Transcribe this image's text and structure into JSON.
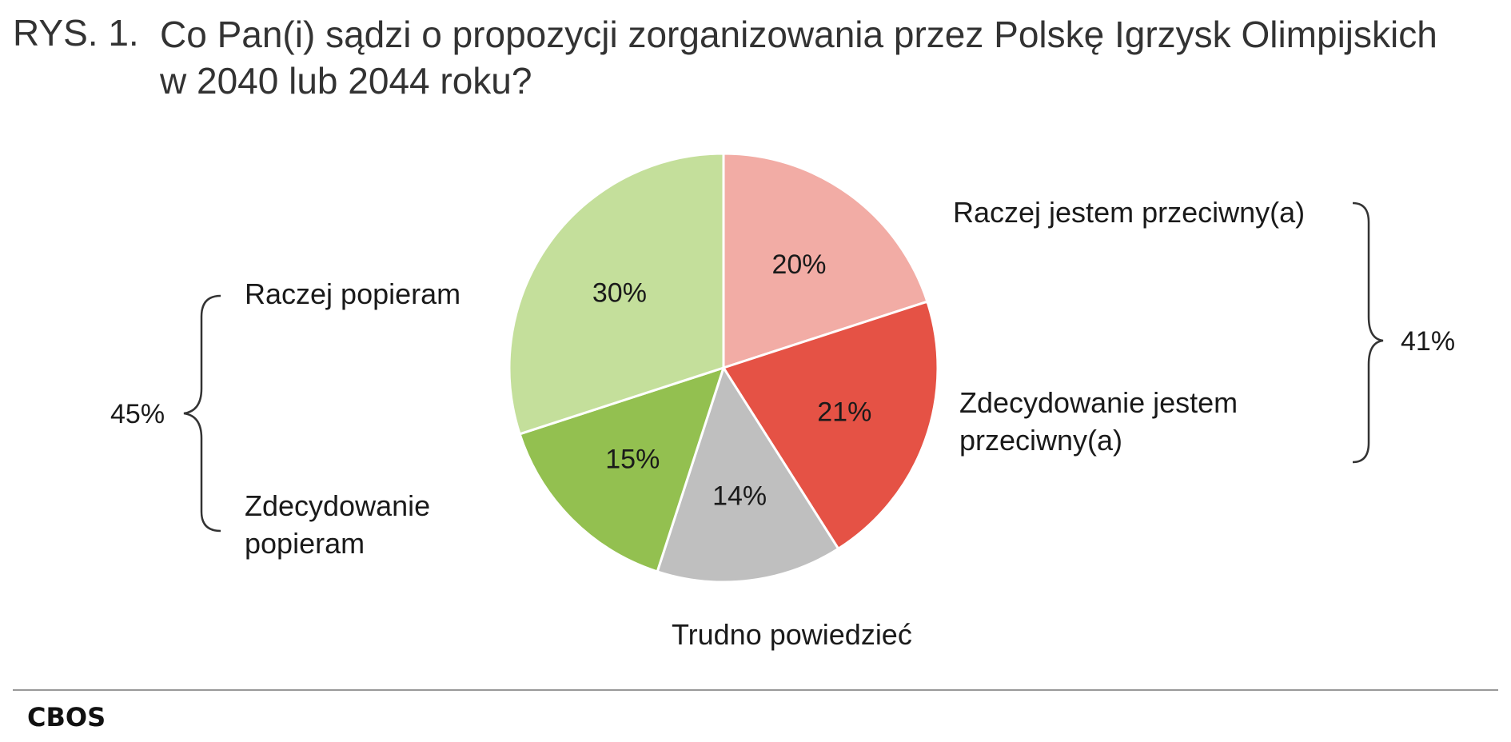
{
  "figure": {
    "number": "RYS. 1.",
    "title": "Co Pan(i) sądzi o propozycji zorganizowania przez Polskę Igrzysk Olimpijskich w 2040 lub 2044 roku?"
  },
  "chart_data": {
    "type": "pie",
    "slices": [
      {
        "label": "Raczej jestem przeciwny(a)",
        "value": 20,
        "value_label": "20%",
        "color": "#f2aca5"
      },
      {
        "label": "Zdecydowanie jestem przeciwny(a)",
        "value": 21,
        "value_label": "21%",
        "color": "#e55245"
      },
      {
        "label": "Trudno powiedzieć",
        "value": 14,
        "value_label": "14%",
        "color": "#bfbfbf"
      },
      {
        "label": "Zdecydowanie popieram",
        "value": 15,
        "value_label": "15%",
        "color": "#93c050"
      },
      {
        "label": "Raczej popieram",
        "value": 30,
        "value_label": "30%",
        "color": "#c4df9b"
      }
    ],
    "groups": [
      {
        "label": "41%",
        "slices": [
          "Raczej jestem przeciwny(a)",
          "Zdecydowanie jestem przeciwny(a)"
        ]
      },
      {
        "label": "45%",
        "slices": [
          "Raczej popieram",
          "Zdecydowanie popieram"
        ]
      }
    ]
  },
  "source": "CBOS"
}
